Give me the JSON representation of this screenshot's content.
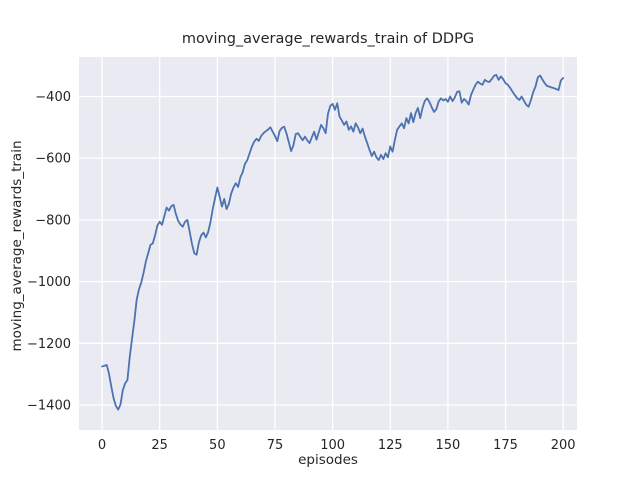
{
  "figure": {
    "title": "moving_average_rewards_train of DDPG",
    "xlabel": "episodes",
    "ylabel": "moving_average_rewards_train"
  },
  "chart_data": {
    "type": "line",
    "title": "moving_average_rewards_train of DDPG",
    "xlabel": "episodes",
    "ylabel": "moving_average_rewards_train",
    "grid": true,
    "legend": "none",
    "style": "seaborn-darkgrid",
    "plot_bg_color": "#EAEAF2",
    "grid_color": "#FFFFFF",
    "line_color": "#4C72B0",
    "text_color": "#262626",
    "xlim": [
      -10,
      206
    ],
    "ylim": [
      -1481,
      -272
    ],
    "xticks": [
      0,
      25,
      50,
      75,
      100,
      125,
      150,
      175,
      200
    ],
    "xtick_labels": [
      "0",
      "25",
      "50",
      "75",
      "100",
      "125",
      "150",
      "175",
      "200"
    ],
    "yticks": [
      -400,
      -600,
      -800,
      -1000,
      -1200,
      -1400
    ],
    "ytick_labels": [
      "−400",
      "−600",
      "−800",
      "−1000",
      "−1200",
      "−1400"
    ],
    "series": [
      {
        "name": "moving_average_rewards_train",
        "color": "#4C72B0",
        "x_start": 0,
        "x_step": 1,
        "values": [
          -1275,
          -1273,
          -1270,
          -1298,
          -1340,
          -1378,
          -1403,
          -1415,
          -1398,
          -1352,
          -1330,
          -1319,
          -1245,
          -1185,
          -1128,
          -1060,
          -1025,
          -1003,
          -972,
          -935,
          -908,
          -881,
          -876,
          -850,
          -818,
          -806,
          -816,
          -788,
          -760,
          -770,
          -756,
          -751,
          -780,
          -803,
          -815,
          -822,
          -806,
          -800,
          -838,
          -878,
          -908,
          -913,
          -873,
          -850,
          -841,
          -857,
          -840,
          -808,
          -765,
          -730,
          -695,
          -725,
          -757,
          -732,
          -765,
          -748,
          -715,
          -695,
          -681,
          -693,
          -662,
          -645,
          -618,
          -606,
          -584,
          -562,
          -546,
          -537,
          -544,
          -528,
          -519,
          -513,
          -507,
          -500,
          -514,
          -528,
          -545,
          -512,
          -502,
          -498,
          -520,
          -548,
          -577,
          -558,
          -522,
          -519,
          -531,
          -542,
          -530,
          -542,
          -551,
          -532,
          -514,
          -540,
          -516,
          -492,
          -503,
          -519,
          -455,
          -430,
          -424,
          -443,
          -422,
          -465,
          -478,
          -492,
          -481,
          -508,
          -497,
          -514,
          -487,
          -500,
          -519,
          -504,
          -530,
          -551,
          -573,
          -593,
          -579,
          -597,
          -606,
          -589,
          -603,
          -584,
          -597,
          -562,
          -579,
          -541,
          -508,
          -497,
          -487,
          -503,
          -470,
          -487,
          -454,
          -483,
          -454,
          -437,
          -470,
          -437,
          -414,
          -406,
          -418,
          -435,
          -450,
          -441,
          -416,
          -406,
          -413,
          -408,
          -417,
          -400,
          -415,
          -403,
          -385,
          -383,
          -420,
          -408,
          -415,
          -426,
          -396,
          -378,
          -362,
          -352,
          -358,
          -362,
          -346,
          -351,
          -353,
          -344,
          -333,
          -330,
          -346,
          -335,
          -344,
          -357,
          -362,
          -372,
          -384,
          -395,
          -405,
          -411,
          -400,
          -414,
          -427,
          -433,
          -412,
          -386,
          -368,
          -338,
          -332,
          -345,
          -357,
          -366,
          -368,
          -371,
          -373,
          -376,
          -379,
          -348,
          -340
        ]
      }
    ]
  }
}
